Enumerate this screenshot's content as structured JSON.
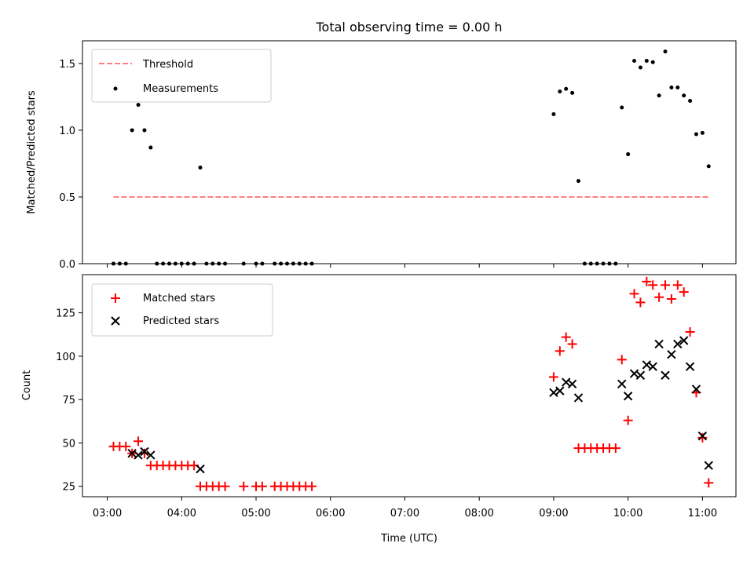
{
  "chart_data": [
    {
      "type": "scatter",
      "title": "Total observing time = 0.00 h",
      "ylabel": "Matched/Predicted stars",
      "xlabel": "",
      "xlim": [
        "02:40",
        "11:27"
      ],
      "ylim": [
        0,
        1.67
      ],
      "yticks": [
        0.0,
        0.5,
        1.0,
        1.5
      ],
      "ytick_labels": [
        "0.0",
        "0.5",
        "1.0",
        "1.5"
      ],
      "legend_position": "top-left",
      "threshold": {
        "name": "Threshold",
        "value": 0.5,
        "x_start": "03:05",
        "x_end": "11:05",
        "color": "#ff7f7f"
      },
      "measurements": {
        "name": "Measurements",
        "color": "#000000",
        "points": [
          [
            "03:05",
            0
          ],
          [
            "03:10",
            0
          ],
          [
            "03:15",
            0
          ],
          [
            "03:20",
            1.0
          ],
          [
            "03:25",
            1.19
          ],
          [
            "03:30",
            1.0
          ],
          [
            "03:35",
            0.87
          ],
          [
            "03:40",
            0
          ],
          [
            "03:45",
            0
          ],
          [
            "03:50",
            0
          ],
          [
            "03:55",
            0
          ],
          [
            "04:00",
            0
          ],
          [
            "04:05",
            0
          ],
          [
            "04:10",
            0
          ],
          [
            "04:15",
            0.72
          ],
          [
            "04:20",
            0
          ],
          [
            "04:25",
            0
          ],
          [
            "04:30",
            0
          ],
          [
            "04:35",
            0
          ],
          [
            "04:50",
            0
          ],
          [
            "05:00",
            0
          ],
          [
            "05:05",
            0
          ],
          [
            "05:15",
            0
          ],
          [
            "05:20",
            0
          ],
          [
            "05:25",
            0
          ],
          [
            "05:30",
            0
          ],
          [
            "05:35",
            0
          ],
          [
            "05:40",
            0
          ],
          [
            "05:45",
            0
          ],
          [
            "09:00",
            1.12
          ],
          [
            "09:05",
            1.29
          ],
          [
            "09:10",
            1.31
          ],
          [
            "09:15",
            1.28
          ],
          [
            "09:20",
            0.62
          ],
          [
            "09:25",
            0
          ],
          [
            "09:30",
            0
          ],
          [
            "09:35",
            0
          ],
          [
            "09:40",
            0
          ],
          [
            "09:45",
            0
          ],
          [
            "09:50",
            0
          ],
          [
            "09:55",
            1.17
          ],
          [
            "10:00",
            0.82
          ],
          [
            "10:05",
            1.52
          ],
          [
            "10:10",
            1.47
          ],
          [
            "10:15",
            1.52
          ],
          [
            "10:20",
            1.51
          ],
          [
            "10:25",
            1.26
          ],
          [
            "10:30",
            1.59
          ],
          [
            "10:35",
            1.32
          ],
          [
            "10:40",
            1.32
          ],
          [
            "10:45",
            1.26
          ],
          [
            "10:50",
            1.22
          ],
          [
            "10:55",
            0.97
          ],
          [
            "11:00",
            0.98
          ],
          [
            "11:05",
            0.73
          ]
        ]
      }
    },
    {
      "type": "scatter",
      "title": "",
      "xlabel": "Time (UTC)",
      "ylabel": "Count",
      "xlim": [
        "02:40",
        "11:27"
      ],
      "ylim": [
        19,
        147
      ],
      "yticks": [
        25,
        50,
        75,
        100,
        125
      ],
      "ytick_labels": [
        "25",
        "50",
        "75",
        "100",
        "125"
      ],
      "xticks": [
        "03:00",
        "04:00",
        "05:00",
        "06:00",
        "07:00",
        "08:00",
        "09:00",
        "10:00",
        "11:00"
      ],
      "legend_position": "top-left",
      "series": [
        {
          "name": "Matched stars",
          "marker": "plus",
          "color": "#ff0000",
          "points": [
            [
              "03:05",
              48
            ],
            [
              "03:10",
              48
            ],
            [
              "03:15",
              48
            ],
            [
              "03:20",
              44
            ],
            [
              "03:25",
              51
            ],
            [
              "03:30",
              44
            ],
            [
              "03:35",
              37
            ],
            [
              "03:40",
              37
            ],
            [
              "03:45",
              37
            ],
            [
              "03:50",
              37
            ],
            [
              "03:55",
              37
            ],
            [
              "04:00",
              37
            ],
            [
              "04:05",
              37
            ],
            [
              "04:10",
              37
            ],
            [
              "04:15",
              25
            ],
            [
              "04:20",
              25
            ],
            [
              "04:25",
              25
            ],
            [
              "04:30",
              25
            ],
            [
              "04:35",
              25
            ],
            [
              "04:50",
              25
            ],
            [
              "05:00",
              25
            ],
            [
              "05:05",
              25
            ],
            [
              "05:15",
              25
            ],
            [
              "05:20",
              25
            ],
            [
              "05:25",
              25
            ],
            [
              "05:30",
              25
            ],
            [
              "05:35",
              25
            ],
            [
              "05:40",
              25
            ],
            [
              "05:45",
              25
            ],
            [
              "09:00",
              88
            ],
            [
              "09:05",
              103
            ],
            [
              "09:10",
              111
            ],
            [
              "09:15",
              107
            ],
            [
              "09:20",
              47
            ],
            [
              "09:25",
              47
            ],
            [
              "09:30",
              47
            ],
            [
              "09:35",
              47
            ],
            [
              "09:40",
              47
            ],
            [
              "09:45",
              47
            ],
            [
              "09:50",
              47
            ],
            [
              "09:55",
              98
            ],
            [
              "10:00",
              63
            ],
            [
              "10:05",
              136
            ],
            [
              "10:10",
              131
            ],
            [
              "10:15",
              143
            ],
            [
              "10:20",
              141
            ],
            [
              "10:25",
              134
            ],
            [
              "10:30",
              141
            ],
            [
              "10:35",
              133
            ],
            [
              "10:40",
              141
            ],
            [
              "10:45",
              137
            ],
            [
              "10:50",
              114
            ],
            [
              "10:55",
              79
            ],
            [
              "11:00",
              53
            ],
            [
              "11:05",
              27
            ]
          ]
        },
        {
          "name": "Predicted stars",
          "marker": "x",
          "color": "#000000",
          "points": [
            [
              "03:20",
              44
            ],
            [
              "03:25",
              43
            ],
            [
              "03:30",
              45
            ],
            [
              "03:35",
              43
            ],
            [
              "04:15",
              35
            ],
            [
              "09:00",
              79
            ],
            [
              "09:05",
              80
            ],
            [
              "09:10",
              85
            ],
            [
              "09:15",
              84
            ],
            [
              "09:20",
              76
            ],
            [
              "09:55",
              84
            ],
            [
              "10:00",
              77
            ],
            [
              "10:05",
              90
            ],
            [
              "10:10",
              89
            ],
            [
              "10:15",
              95
            ],
            [
              "10:20",
              94
            ],
            [
              "10:25",
              107
            ],
            [
              "10:30",
              89
            ],
            [
              "10:35",
              101
            ],
            [
              "10:40",
              107
            ],
            [
              "10:45",
              109
            ],
            [
              "10:50",
              94
            ],
            [
              "10:55",
              81
            ],
            [
              "11:00",
              54
            ],
            [
              "11:05",
              37
            ]
          ]
        }
      ]
    }
  ]
}
